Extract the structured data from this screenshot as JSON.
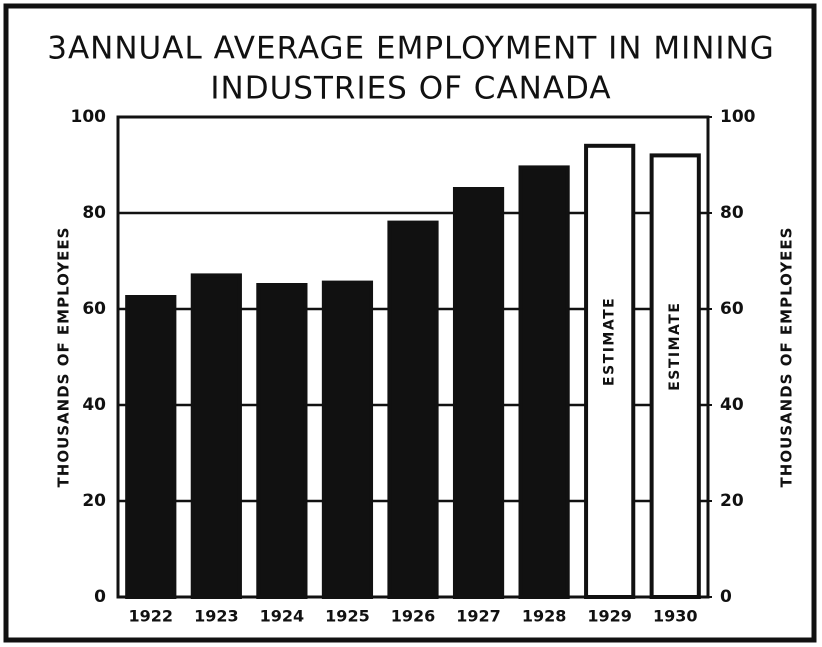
{
  "chart_data": {
    "type": "bar",
    "title": [
      "3ANNUAL AVERAGE EMPLOYMENT IN MINING",
      "INDUSTRIES OF CANADA"
    ],
    "y_label": "THOUSANDS OF EMPLOYEES",
    "y2_label": "THOUSANDS OF EMPLOYEES",
    "categories": [
      "1922",
      "1923",
      "1924",
      "1925",
      "1926",
      "1927",
      "1928",
      "1929",
      "1930"
    ],
    "values": [
      62.5,
      67,
      65,
      65.5,
      78,
      85,
      89.5,
      94,
      92
    ],
    "colors": [
      "#111111",
      "#111111",
      "#111111",
      "#111111",
      "#111111",
      "#111111",
      "#111111",
      "#ffffff",
      "#ffffff"
    ],
    "annotations": [
      {
        "text": "ESTIMATE",
        "x": "1929"
      },
      {
        "text": "ESTIMATE",
        "x": "1930"
      }
    ],
    "ylim": [
      0,
      100
    ],
    "yticks": [
      0,
      20,
      40,
      60,
      80,
      100
    ],
    "y2lim": [
      0,
      100
    ],
    "y2ticks": [
      0,
      20,
      40,
      60,
      80,
      100
    ],
    "grid": true
  }
}
